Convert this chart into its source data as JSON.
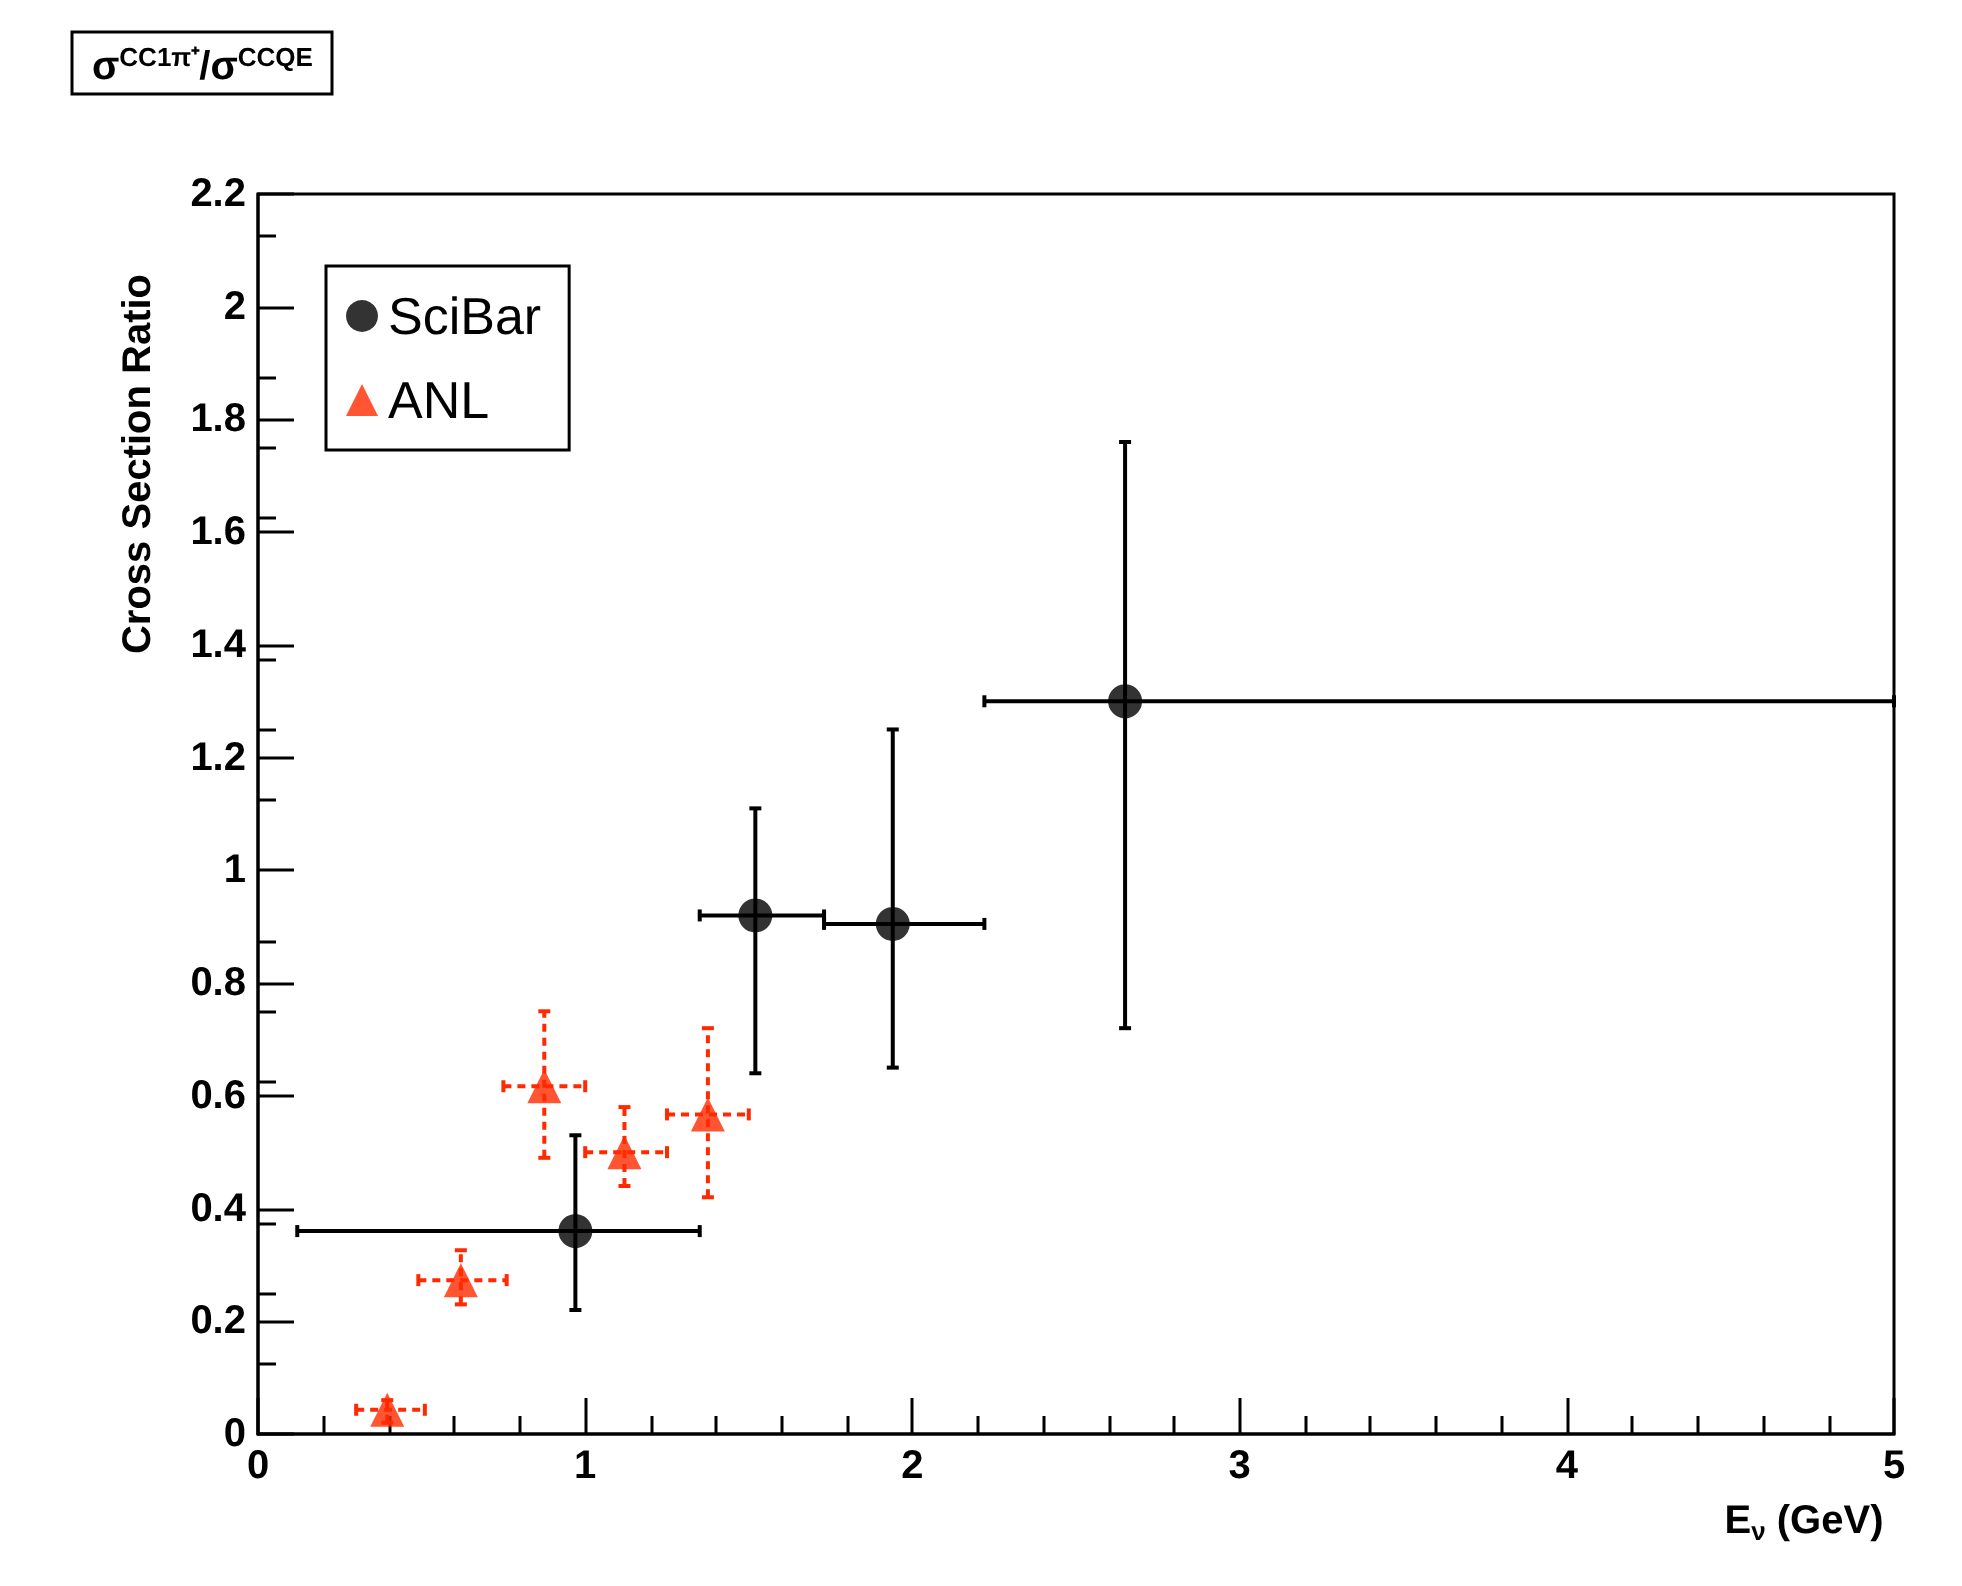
{
  "chart_data": {
    "type": "scatter",
    "title": "σ$^{CC1π⁺}$/σ$^{CCQE}$",
    "xlabel": "E$_{ν}$ (GeV)",
    "ylabel": "Cross Section Ratio",
    "xlim": [
      0,
      5
    ],
    "xticks": [
      0,
      1,
      2,
      3,
      4,
      5
    ],
    "ylim": [
      0,
      2.2
    ],
    "yticks": [
      0,
      0.2,
      0.4,
      0.6,
      0.8,
      1,
      1.2,
      1.4,
      1.6,
      1.8,
      2,
      2.2
    ],
    "grid": false,
    "legend": "top left",
    "series": [
      {
        "name": "SciBar",
        "color": "#000000",
        "marker": "circle",
        "line_style": "solid",
        "x": [
          0.97,
          1.52,
          1.94,
          2.65
        ],
        "values": [
          0.36,
          0.92,
          0.905,
          1.3
        ],
        "errors": [
          [
            0.22,
            0.53
          ],
          [
            0.64,
            1.11
          ],
          [
            0.65,
            1.25
          ],
          [
            0.72,
            1.76
          ]
        ],
        "xerrors": [
          [
            0.12,
            1.35
          ],
          [
            1.35,
            1.73
          ],
          [
            1.73,
            2.22
          ],
          [
            2.22,
            5.0
          ]
        ]
      },
      {
        "name": "ANL",
        "color": "#ff2a00",
        "marker": "triangle",
        "line_style": "dashed",
        "x": [
          0.395,
          0.62,
          0.875,
          1.12,
          1.375
        ],
        "values": [
          0.043,
          0.273,
          0.617,
          0.5,
          0.567
        ],
        "errors": [
          [
            0.02,
            0.06
          ],
          [
            0.23,
            0.326
          ],
          [
            0.49,
            0.75
          ],
          [
            0.44,
            0.58
          ],
          [
            0.42,
            0.72
          ]
        ],
        "xerrors": [
          [
            0.3,
            0.51
          ],
          [
            0.49,
            0.76
          ],
          [
            0.75,
            1.0
          ],
          [
            1.0,
            1.25
          ],
          [
            1.25,
            1.5
          ]
        ]
      }
    ]
  }
}
